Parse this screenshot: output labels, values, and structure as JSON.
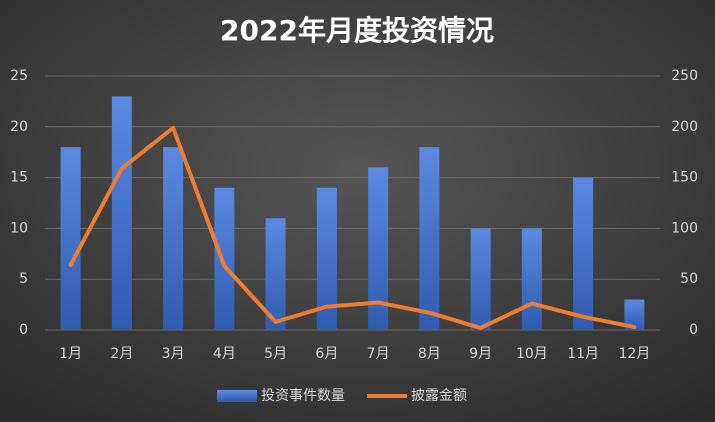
{
  "chart_data": {
    "type": "bar-line",
    "title": "2022年月度投资情况",
    "categories": [
      "1月",
      "2月",
      "3月",
      "4月",
      "5月",
      "6月",
      "7月",
      "8月",
      "9月",
      "10月",
      "11月",
      "12月"
    ],
    "series": [
      {
        "name": "投资事件数量",
        "type": "bar",
        "color": "#4472c4",
        "values": [
          18,
          23,
          18,
          14,
          11,
          14,
          16,
          18,
          10,
          10,
          15,
          3
        ]
      },
      {
        "name": "披露金额",
        "type": "line",
        "axis": "y2",
        "color": "#ed7d31",
        "values": [
          64,
          159,
          199,
          63,
          8,
          23,
          27,
          17,
          2,
          26,
          13,
          3
        ]
      }
    ],
    "ylim": [
      0,
      25
    ],
    "yticks": [
      0,
      5,
      10,
      15,
      20,
      25
    ],
    "y2lim": [
      0,
      250
    ],
    "y2ticks": [
      0,
      50,
      100,
      150,
      200,
      250
    ],
    "grid": true,
    "legend": "bottom"
  }
}
